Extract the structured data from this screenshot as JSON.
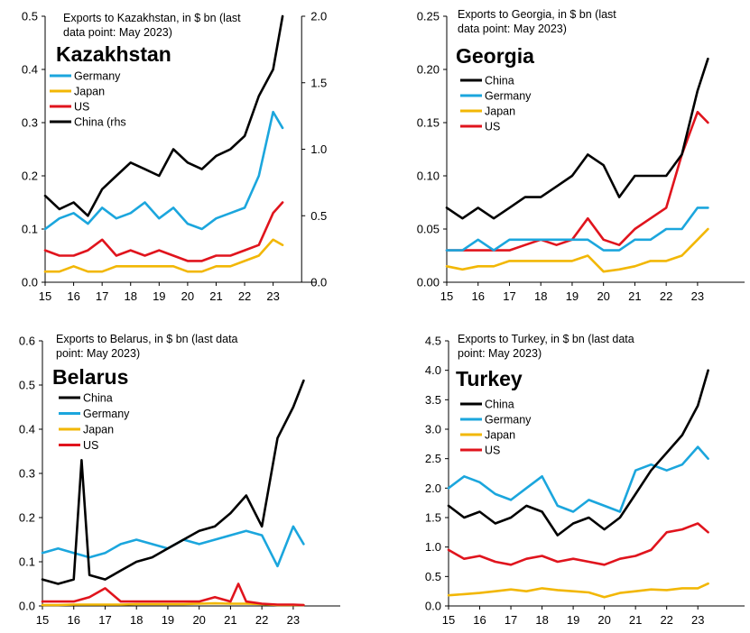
{
  "colors": {
    "China": "#000000",
    "Germany": "#1ba6dd",
    "Japan": "#f2b705",
    "US": "#e0141d"
  },
  "chart_data": [
    {
      "type": "line",
      "country": "Kazakhstan",
      "subtitle": [
        "Exports to Kazakhstan, in $ bn (last",
        "data point: May 2023)"
      ],
      "xtick_labels": [
        "15",
        "16",
        "17",
        "18",
        "19",
        "20",
        "21",
        "22",
        "23"
      ],
      "ylim": [
        0,
        0.5
      ],
      "yticks": [
        "0.0",
        "0.1",
        "0.2",
        "0.3",
        "0.4",
        "0.5"
      ],
      "y2lim": [
        0,
        2.0
      ],
      "y2ticks": [
        "0.0",
        "0.5",
        "1.0",
        "1.5",
        "2.0"
      ],
      "legend": [
        {
          "series": "Germany",
          "label": "Germany"
        },
        {
          "series": "Japan",
          "label": "Japan"
        },
        {
          "series": "US",
          "label": "US"
        },
        {
          "series": "China",
          "label": "China (rhs"
        }
      ],
      "series": [
        {
          "name": "Germany",
          "axis": "left",
          "x": [
            2015.0,
            2015.5,
            2016.0,
            2016.5,
            2017.0,
            2017.5,
            2018.0,
            2018.5,
            2019.0,
            2019.5,
            2020.0,
            2020.5,
            2021.0,
            2021.5,
            2022.0,
            2022.5,
            2023.0,
            2023.33
          ],
          "values": [
            0.1,
            0.12,
            0.13,
            0.11,
            0.14,
            0.12,
            0.13,
            0.15,
            0.12,
            0.14,
            0.11,
            0.1,
            0.12,
            0.13,
            0.14,
            0.2,
            0.32,
            0.29
          ]
        },
        {
          "name": "Japan",
          "axis": "left",
          "x": [
            2015.0,
            2015.5,
            2016.0,
            2016.5,
            2017.0,
            2017.5,
            2018.0,
            2018.5,
            2019.0,
            2019.5,
            2020.0,
            2020.5,
            2021.0,
            2021.5,
            2022.0,
            2022.5,
            2023.0,
            2023.33
          ],
          "values": [
            0.02,
            0.02,
            0.03,
            0.02,
            0.02,
            0.03,
            0.03,
            0.03,
            0.03,
            0.03,
            0.02,
            0.02,
            0.03,
            0.03,
            0.04,
            0.05,
            0.08,
            0.07
          ]
        },
        {
          "name": "US",
          "axis": "left",
          "x": [
            2015.0,
            2015.5,
            2016.0,
            2016.5,
            2017.0,
            2017.5,
            2018.0,
            2018.5,
            2019.0,
            2019.5,
            2020.0,
            2020.5,
            2021.0,
            2021.5,
            2022.0,
            2022.5,
            2023.0,
            2023.33
          ],
          "values": [
            0.06,
            0.05,
            0.05,
            0.06,
            0.08,
            0.05,
            0.06,
            0.05,
            0.06,
            0.05,
            0.04,
            0.04,
            0.05,
            0.05,
            0.06,
            0.07,
            0.13,
            0.15
          ]
        },
        {
          "name": "China",
          "axis": "right",
          "x": [
            2015.0,
            2015.5,
            2016.0,
            2016.5,
            2017.0,
            2017.5,
            2018.0,
            2018.5,
            2019.0,
            2019.5,
            2020.0,
            2020.5,
            2021.0,
            2021.5,
            2022.0,
            2022.5,
            2023.0,
            2023.33
          ],
          "values": [
            0.65,
            0.55,
            0.6,
            0.5,
            0.7,
            0.8,
            0.9,
            0.85,
            0.8,
            1.0,
            0.9,
            0.85,
            0.95,
            1.0,
            1.1,
            1.4,
            1.6,
            2.0
          ]
        }
      ]
    },
    {
      "type": "line",
      "country": "Georgia",
      "subtitle": [
        "Exports to Georgia, in $ bn (last",
        "data point: May 2023)"
      ],
      "xtick_labels": [
        "15",
        "16",
        "17",
        "18",
        "19",
        "20",
        "21",
        "22",
        "23"
      ],
      "ylim": [
        0,
        0.25
      ],
      "yticks": [
        "0.00",
        "0.05",
        "0.10",
        "0.15",
        "0.20",
        "0.25"
      ],
      "legend": [
        {
          "series": "China",
          "label": "China"
        },
        {
          "series": "Germany",
          "label": "Germany"
        },
        {
          "series": "Japan",
          "label": "Japan"
        },
        {
          "series": "US",
          "label": "US"
        }
      ],
      "series": [
        {
          "name": "China",
          "x": [
            2015.0,
            2015.5,
            2016.0,
            2016.5,
            2017.0,
            2017.5,
            2018.0,
            2018.5,
            2019.0,
            2019.5,
            2020.0,
            2020.5,
            2021.0,
            2021.5,
            2022.0,
            2022.5,
            2023.0,
            2023.33
          ],
          "values": [
            0.07,
            0.06,
            0.07,
            0.06,
            0.07,
            0.08,
            0.08,
            0.09,
            0.1,
            0.12,
            0.11,
            0.08,
            0.1,
            0.1,
            0.1,
            0.12,
            0.18,
            0.21
          ]
        },
        {
          "name": "Germany",
          "x": [
            2015.0,
            2015.5,
            2016.0,
            2016.5,
            2017.0,
            2017.5,
            2018.0,
            2018.5,
            2019.0,
            2019.5,
            2020.0,
            2020.5,
            2021.0,
            2021.5,
            2022.0,
            2022.5,
            2023.0,
            2023.33
          ],
          "values": [
            0.03,
            0.03,
            0.04,
            0.03,
            0.04,
            0.04,
            0.04,
            0.04,
            0.04,
            0.04,
            0.03,
            0.03,
            0.04,
            0.04,
            0.05,
            0.05,
            0.07,
            0.07
          ]
        },
        {
          "name": "Japan",
          "x": [
            2015.0,
            2015.5,
            2016.0,
            2016.5,
            2017.0,
            2017.5,
            2018.0,
            2018.5,
            2019.0,
            2019.5,
            2020.0,
            2020.5,
            2021.0,
            2021.5,
            2022.0,
            2022.5,
            2023.0,
            2023.33
          ],
          "values": [
            0.015,
            0.012,
            0.015,
            0.015,
            0.02,
            0.02,
            0.02,
            0.02,
            0.02,
            0.025,
            0.01,
            0.012,
            0.015,
            0.02,
            0.02,
            0.025,
            0.04,
            0.05
          ]
        },
        {
          "name": "US",
          "x": [
            2015.0,
            2015.5,
            2016.0,
            2016.5,
            2017.0,
            2017.5,
            2018.0,
            2018.5,
            2019.0,
            2019.5,
            2020.0,
            2020.5,
            2021.0,
            2021.5,
            2022.0,
            2022.5,
            2023.0,
            2023.33
          ],
          "values": [
            0.03,
            0.03,
            0.03,
            0.03,
            0.03,
            0.035,
            0.04,
            0.035,
            0.04,
            0.06,
            0.04,
            0.035,
            0.05,
            0.06,
            0.07,
            0.12,
            0.16,
            0.15
          ]
        }
      ]
    },
    {
      "type": "line",
      "country": "Belarus",
      "subtitle": [
        "Exports to Belarus, in $ bn (last data",
        "point: May 2023)"
      ],
      "xtick_labels": [
        "15",
        "16",
        "17",
        "18",
        "19",
        "20",
        "21",
        "22",
        "23"
      ],
      "ylim": [
        0,
        0.6
      ],
      "yticks": [
        "0.0",
        "0.1",
        "0.2",
        "0.3",
        "0.4",
        "0.5",
        "0.6"
      ],
      "legend": [
        {
          "series": "China",
          "label": "China"
        },
        {
          "series": "Germany",
          "label": "Germany"
        },
        {
          "series": "Japan",
          "label": "Japan"
        },
        {
          "series": "US",
          "label": "US"
        }
      ],
      "series": [
        {
          "name": "China",
          "x": [
            2015.0,
            2015.5,
            2016.0,
            2016.25,
            2016.5,
            2017.0,
            2017.5,
            2018.0,
            2018.5,
            2019.0,
            2019.5,
            2020.0,
            2020.5,
            2021.0,
            2021.5,
            2022.0,
            2022.5,
            2023.0,
            2023.33
          ],
          "values": [
            0.06,
            0.05,
            0.06,
            0.33,
            0.07,
            0.06,
            0.08,
            0.1,
            0.11,
            0.13,
            0.15,
            0.17,
            0.18,
            0.21,
            0.25,
            0.18,
            0.38,
            0.45,
            0.51
          ]
        },
        {
          "name": "Germany",
          "x": [
            2015.0,
            2015.5,
            2016.0,
            2016.5,
            2017.0,
            2017.5,
            2018.0,
            2018.5,
            2019.0,
            2019.5,
            2020.0,
            2020.5,
            2021.0,
            2021.5,
            2022.0,
            2022.5,
            2023.0,
            2023.33
          ],
          "values": [
            0.12,
            0.13,
            0.12,
            0.11,
            0.12,
            0.14,
            0.15,
            0.14,
            0.13,
            0.15,
            0.14,
            0.15,
            0.16,
            0.17,
            0.16,
            0.09,
            0.18,
            0.14
          ]
        },
        {
          "name": "Japan",
          "x": [
            2015.0,
            2015.5,
            2016.0,
            2016.5,
            2017.0,
            2017.5,
            2018.0,
            2018.5,
            2019.0,
            2019.5,
            2020.0,
            2020.5,
            2021.0,
            2021.5,
            2022.0,
            2022.5,
            2023.0,
            2023.33
          ],
          "values": [
            0.002,
            0.002,
            0.003,
            0.003,
            0.003,
            0.003,
            0.004,
            0.004,
            0.004,
            0.004,
            0.005,
            0.006,
            0.005,
            0.005,
            0.004,
            0.002,
            0.002,
            0.002
          ]
        },
        {
          "name": "US",
          "x": [
            2015.0,
            2015.5,
            2016.0,
            2016.5,
            2017.0,
            2017.5,
            2018.0,
            2018.5,
            2019.0,
            2019.5,
            2020.0,
            2020.5,
            2021.0,
            2021.25,
            2021.5,
            2022.0,
            2022.5,
            2023.0,
            2023.33
          ],
          "values": [
            0.01,
            0.01,
            0.01,
            0.02,
            0.04,
            0.01,
            0.01,
            0.01,
            0.01,
            0.01,
            0.01,
            0.02,
            0.01,
            0.05,
            0.01,
            0.005,
            0.003,
            0.003,
            0.002
          ]
        }
      ]
    },
    {
      "type": "line",
      "country": "Turkey",
      "subtitle": [
        "Exports to Turkey, in $ bn (last data",
        "point:  May 2023)"
      ],
      "xtick_labels": [
        "15",
        "16",
        "17",
        "18",
        "19",
        "20",
        "21",
        "22",
        "23"
      ],
      "ylim": [
        0,
        4.5
      ],
      "yticks": [
        "0.0",
        "0.5",
        "1.0",
        "1.5",
        "2.0",
        "2.5",
        "3.0",
        "3.5",
        "4.0",
        "4.5"
      ],
      "legend": [
        {
          "series": "China",
          "label": "China"
        },
        {
          "series": "Germany",
          "label": "Germany"
        },
        {
          "series": "Japan",
          "label": "Japan"
        },
        {
          "series": "US",
          "label": "US"
        }
      ],
      "series": [
        {
          "name": "China",
          "x": [
            2015.0,
            2015.5,
            2016.0,
            2016.5,
            2017.0,
            2017.5,
            2018.0,
            2018.5,
            2019.0,
            2019.5,
            2020.0,
            2020.5,
            2021.0,
            2021.5,
            2022.0,
            2022.5,
            2023.0,
            2023.33
          ],
          "values": [
            1.7,
            1.5,
            1.6,
            1.4,
            1.5,
            1.7,
            1.6,
            1.2,
            1.4,
            1.5,
            1.3,
            1.5,
            1.9,
            2.3,
            2.6,
            2.9,
            3.4,
            4.0
          ]
        },
        {
          "name": "Germany",
          "x": [
            2015.0,
            2015.5,
            2016.0,
            2016.5,
            2017.0,
            2017.5,
            2018.0,
            2018.5,
            2019.0,
            2019.5,
            2020.0,
            2020.5,
            2021.0,
            2021.5,
            2022.0,
            2022.5,
            2023.0,
            2023.33
          ],
          "values": [
            2.0,
            2.2,
            2.1,
            1.9,
            1.8,
            2.0,
            2.2,
            1.7,
            1.6,
            1.8,
            1.7,
            1.6,
            2.3,
            2.4,
            2.3,
            2.4,
            2.7,
            2.5
          ]
        },
        {
          "name": "Japan",
          "x": [
            2015.0,
            2015.5,
            2016.0,
            2016.5,
            2017.0,
            2017.5,
            2018.0,
            2018.5,
            2019.0,
            2019.5,
            2020.0,
            2020.5,
            2021.0,
            2021.5,
            2022.0,
            2022.5,
            2023.0,
            2023.33
          ],
          "values": [
            0.18,
            0.2,
            0.22,
            0.25,
            0.28,
            0.25,
            0.3,
            0.27,
            0.25,
            0.23,
            0.15,
            0.22,
            0.25,
            0.28,
            0.27,
            0.3,
            0.3,
            0.38
          ]
        },
        {
          "name": "US",
          "x": [
            2015.0,
            2015.5,
            2016.0,
            2016.5,
            2017.0,
            2017.5,
            2018.0,
            2018.5,
            2019.0,
            2019.5,
            2020.0,
            2020.5,
            2021.0,
            2021.5,
            2022.0,
            2022.5,
            2023.0,
            2023.33
          ],
          "values": [
            0.95,
            0.8,
            0.85,
            0.75,
            0.7,
            0.8,
            0.85,
            0.75,
            0.8,
            0.75,
            0.7,
            0.8,
            0.85,
            0.95,
            1.25,
            1.3,
            1.4,
            1.25
          ]
        }
      ]
    }
  ]
}
